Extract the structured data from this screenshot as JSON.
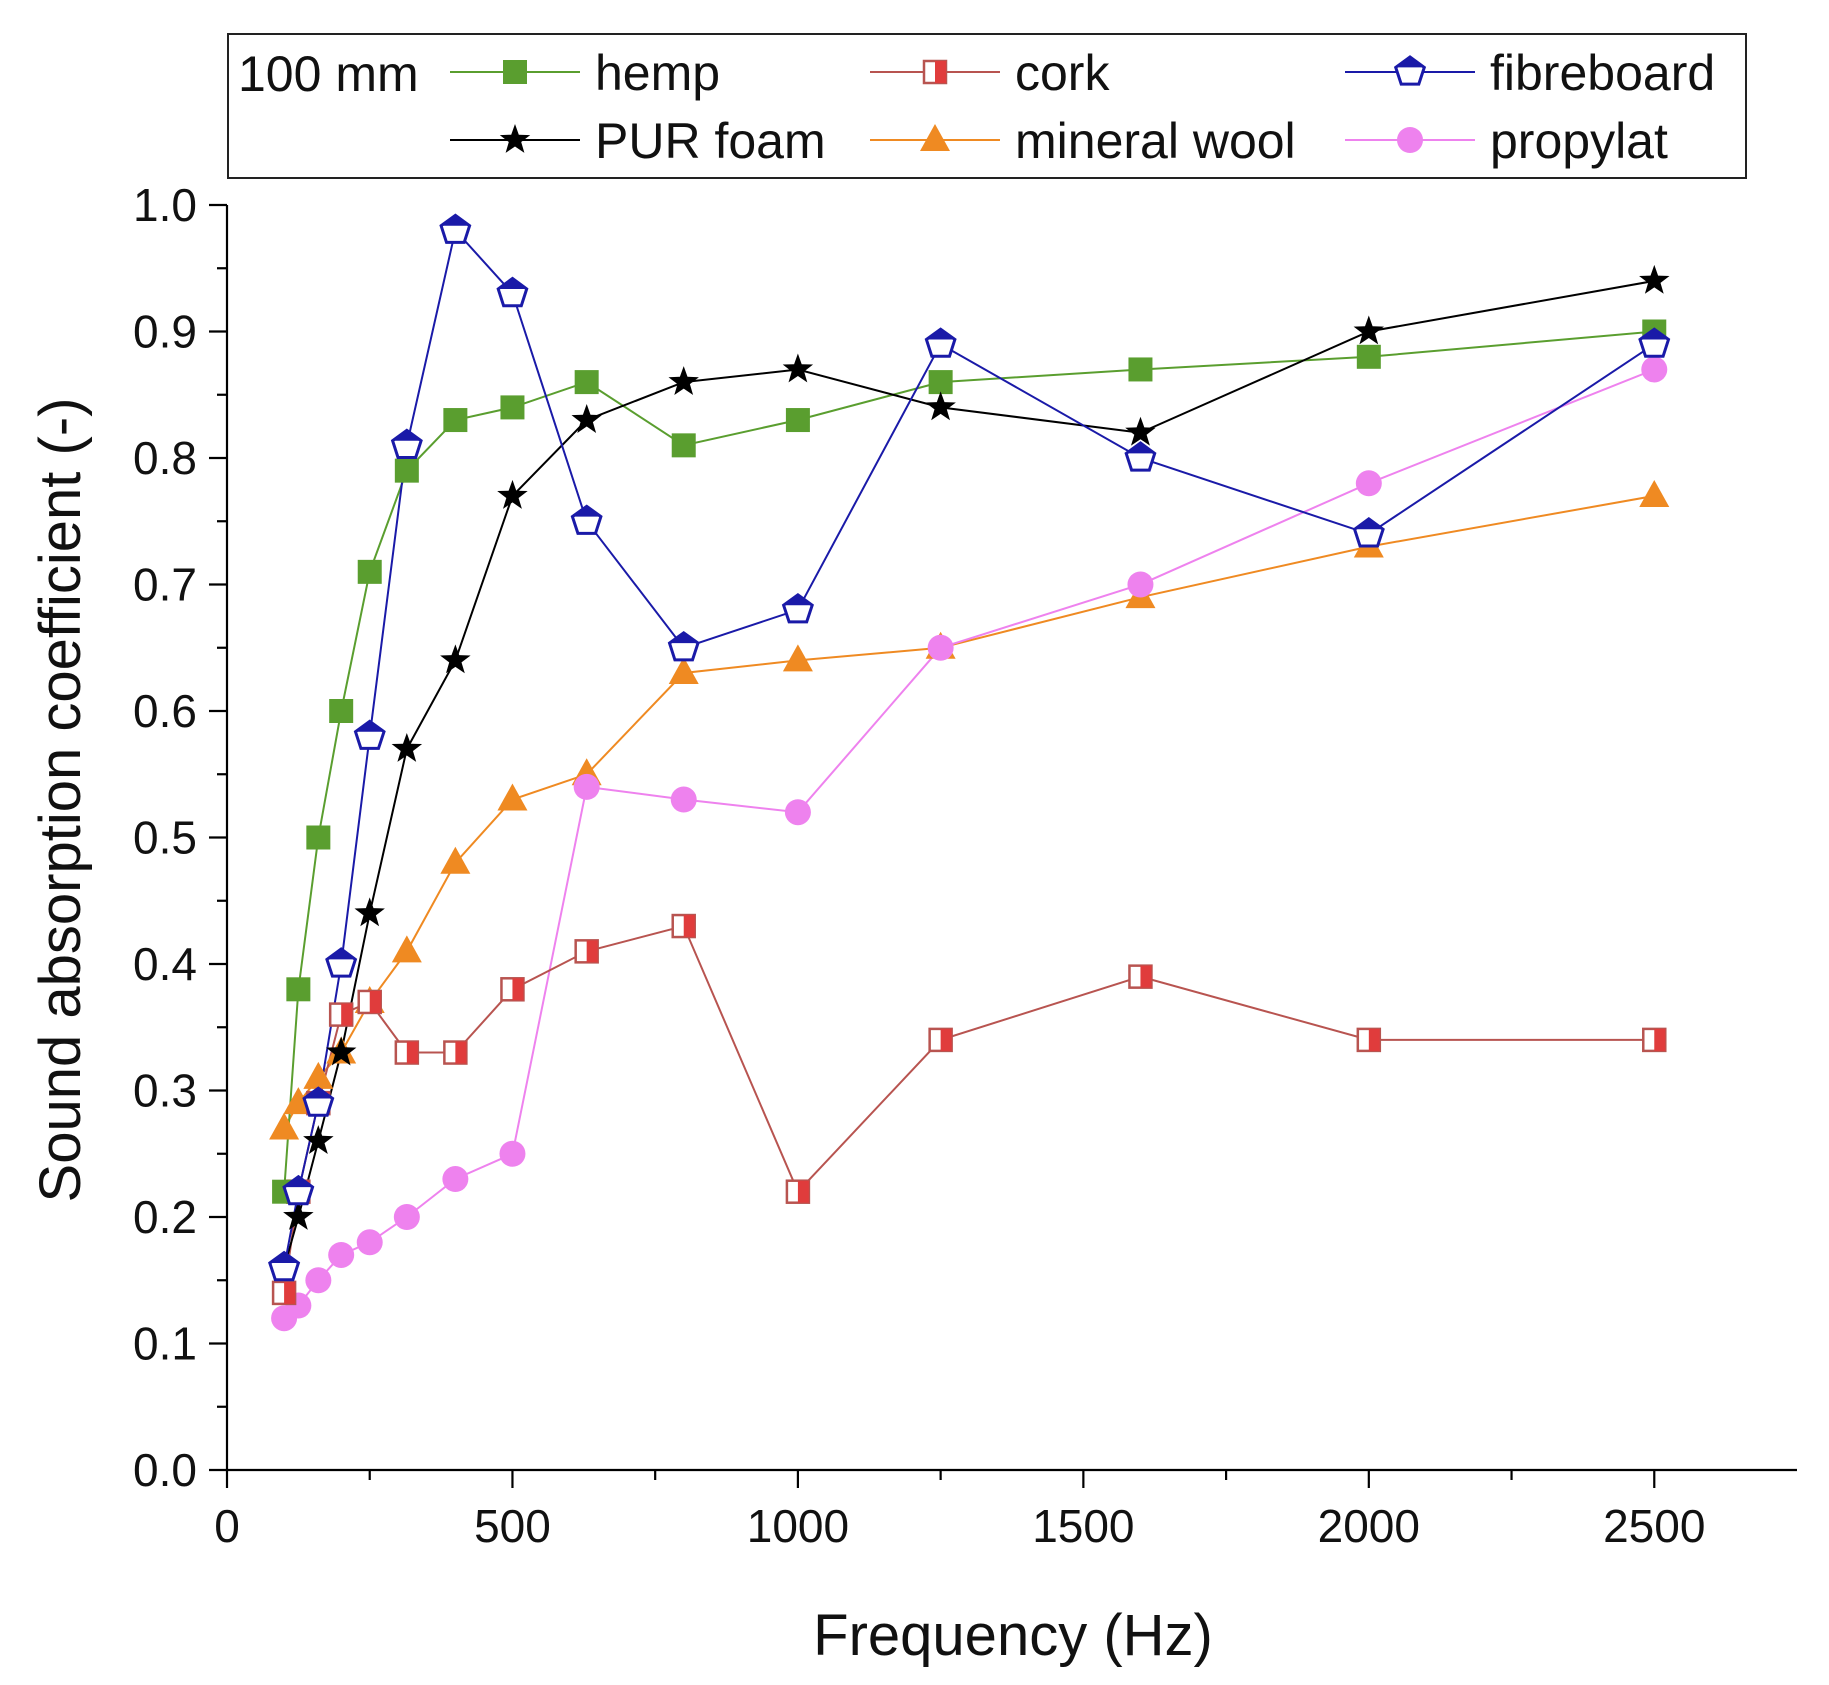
{
  "chart_data": {
    "type": "line",
    "xlabel": "Frequency (Hz)",
    "ylabel": "Sound absorption coefficient (-)",
    "xlim": [
      0,
      2750
    ],
    "ylim": [
      0.0,
      1.0
    ],
    "x_ticks": [
      0,
      500,
      1000,
      1500,
      2000,
      2500
    ],
    "x_tick_labels": [
      "0",
      "500",
      "1000",
      "1500",
      "2000",
      "2500"
    ],
    "y_ticks": [
      0.0,
      0.1,
      0.2,
      0.3,
      0.4,
      0.5,
      0.6,
      0.7,
      0.8,
      0.9,
      1.0
    ],
    "y_tick_labels": [
      "0.0",
      "0.1",
      "0.2",
      "0.3",
      "0.4",
      "0.5",
      "0.6",
      "0.7",
      "0.8",
      "0.9",
      "1.0"
    ],
    "grid": false,
    "legend": {
      "title": "100 mm",
      "placement": "top",
      "columns": 3
    },
    "x": [
      100,
      125,
      160,
      200,
      250,
      315,
      400,
      500,
      630,
      800,
      1000,
      1250,
      1600,
      2000,
      2500
    ],
    "series": [
      {
        "name": "hemp",
        "color": "#5a9e2f",
        "marker": "square",
        "values": [
          0.22,
          0.38,
          0.5,
          0.6,
          0.71,
          0.79,
          0.83,
          0.84,
          0.86,
          0.81,
          0.83,
          0.86,
          0.87,
          0.88,
          0.9
        ]
      },
      {
        "name": "cork",
        "color": "#b85450",
        "marker": "half-square",
        "values": [
          0.14,
          0.22,
          0.29,
          0.36,
          0.37,
          0.33,
          0.33,
          0.38,
          0.41,
          0.43,
          0.22,
          0.34,
          0.39,
          0.34,
          0.34
        ]
      },
      {
        "name": "fibreboard",
        "color": "#1a1aa8",
        "marker": "pentagon",
        "values": [
          0.16,
          0.22,
          0.29,
          0.4,
          0.58,
          0.81,
          0.98,
          0.93,
          0.75,
          0.65,
          0.68,
          0.89,
          0.8,
          0.74,
          0.89
        ]
      },
      {
        "name": "PUR foam",
        "color": "#000000",
        "marker": "star",
        "values": [
          0.16,
          0.2,
          0.26,
          0.33,
          0.44,
          0.57,
          0.64,
          0.77,
          0.83,
          0.86,
          0.87,
          0.84,
          0.82,
          0.9,
          0.94
        ]
      },
      {
        "name": "mineral wool",
        "color": "#ef8a22",
        "marker": "triangle",
        "values": [
          0.27,
          0.29,
          0.31,
          0.33,
          0.37,
          0.41,
          0.48,
          0.53,
          0.55,
          0.63,
          0.64,
          0.65,
          0.69,
          0.73,
          0.77
        ]
      },
      {
        "name": "propylat",
        "color": "#ee82ee",
        "marker": "circle",
        "values": [
          0.12,
          0.13,
          0.15,
          0.17,
          0.18,
          0.2,
          0.23,
          0.25,
          0.54,
          0.53,
          0.52,
          0.65,
          0.7,
          0.78,
          0.87
        ]
      }
    ]
  }
}
